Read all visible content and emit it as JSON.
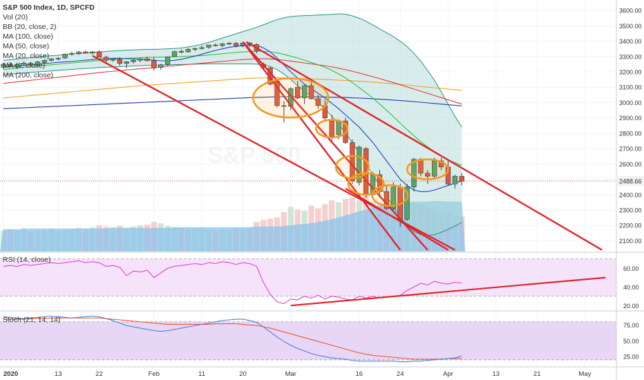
{
  "legend": {
    "title": "S&P 500 Index, 1D, SPCFD",
    "lines": [
      "Vol (20)",
      "BB (20, close, 2)",
      "MA (100, close)",
      "MA (50, close)",
      "MA (20, close)",
      "MA (9, close)",
      "MA (200, close)"
    ]
  },
  "watermark": "S&P 500",
  "rsi_label": "RSI (14, close)",
  "stoch_label": "Stoch (21, 14, 14)",
  "colors": {
    "up": "#53a66b",
    "down": "#e0573e",
    "bb_fill": "#a8d6d3",
    "bb_line": "#2a8f86",
    "ma9": "#1f3fbf",
    "ma20": "#2fbf3f",
    "ma50": "#e03a3a",
    "ma100": "#f0a020",
    "ma200": "#2238a0",
    "trend": "#e0262a",
    "circle": "#f39a1f",
    "rsi": "#e040e0",
    "rsi_fill": "#f3dcf7",
    "stoch_k": "#4a7fd1",
    "stoch_d": "#ec5a2d",
    "stoch_fill": "#e4cff5",
    "vol_up": "#cfe6d4",
    "vol_down": "#f6cfcf",
    "vol_ma": "#8cc3ea"
  },
  "chart_data": {
    "type": "candlestick",
    "price_ticks": [
      3600,
      3500,
      3400,
      3300,
      3200,
      3100,
      3000,
      2900,
      2800,
      2700,
      2600,
      2500,
      2400,
      2300,
      2200,
      2100
    ],
    "price_ylim": [
      2030,
      3650
    ],
    "last_price": "2488.66",
    "x_labels": [
      {
        "label": "2020",
        "i": 0
      },
      {
        "label": "13",
        "i": 8
      },
      {
        "label": "22",
        "i": 14
      },
      {
        "label": "Feb",
        "i": 22
      },
      {
        "label": "11",
        "i": 29
      },
      {
        "label": "20",
        "i": 35
      },
      {
        "label": "Mar",
        "i": 42
      },
      {
        "label": "16",
        "i": 52
      },
      {
        "label": "24",
        "i": 58
      },
      {
        "label": "Apr",
        "i": 65
      },
      {
        "label": "13",
        "i": 72
      },
      {
        "label": "21",
        "i": 78
      },
      {
        "label": "May",
        "i": 85
      }
    ],
    "candles": [
      [
        3230,
        3260,
        3215,
        3250
      ],
      [
        3248,
        3262,
        3230,
        3236
      ],
      [
        3232,
        3252,
        3225,
        3248
      ],
      [
        3250,
        3268,
        3240,
        3256
      ],
      [
        3255,
        3265,
        3240,
        3245
      ],
      [
        3245,
        3272,
        3240,
        3265
      ],
      [
        3262,
        3280,
        3255,
        3275
      ],
      [
        3275,
        3290,
        3268,
        3285
      ],
      [
        3285,
        3295,
        3275,
        3288
      ],
      [
        3290,
        3318,
        3285,
        3316
      ],
      [
        3318,
        3332,
        3305,
        3320
      ],
      [
        3318,
        3336,
        3310,
        3330
      ],
      [
        3330,
        3338,
        3318,
        3322
      ],
      [
        3322,
        3336,
        3315,
        3330
      ],
      [
        3330,
        3340,
        3300,
        3295
      ],
      [
        3295,
        3305,
        3260,
        3276
      ],
      [
        3276,
        3290,
        3265,
        3282
      ],
      [
        3280,
        3295,
        3240,
        3255
      ],
      [
        3255,
        3270,
        3225,
        3266
      ],
      [
        3266,
        3285,
        3255,
        3275
      ],
      [
        3275,
        3290,
        3262,
        3285
      ],
      [
        3285,
        3298,
        3270,
        3272
      ],
      [
        3272,
        3295,
        3210,
        3225
      ],
      [
        3228,
        3252,
        3215,
        3246
      ],
      [
        3248,
        3300,
        3240,
        3298
      ],
      [
        3300,
        3338,
        3298,
        3332
      ],
      [
        3334,
        3345,
        3320,
        3328
      ],
      [
        3330,
        3355,
        3325,
        3347
      ],
      [
        3347,
        3358,
        3335,
        3352
      ],
      [
        3352,
        3372,
        3345,
        3358
      ],
      [
        3360,
        3378,
        3350,
        3375
      ],
      [
        3375,
        3385,
        3365,
        3372
      ],
      [
        3372,
        3390,
        3360,
        3382
      ],
      [
        3382,
        3392,
        3374,
        3386
      ],
      [
        3386,
        3394,
        3360,
        3370
      ],
      [
        3372,
        3393,
        3360,
        3388
      ],
      [
        3388,
        3392,
        3362,
        3378
      ],
      [
        3378,
        3385,
        3320,
        3338
      ],
      [
        3250,
        3262,
        3215,
        3226
      ],
      [
        3226,
        3235,
        3110,
        3120
      ],
      [
        3140,
        3150,
        2970,
        2980
      ],
      [
        2980,
        3010,
        2870,
        2975
      ],
      [
        2975,
        3100,
        2950,
        3090
      ],
      [
        3100,
        3140,
        3020,
        3030
      ],
      [
        3030,
        3115,
        2990,
        3110
      ],
      [
        3110,
        3130,
        3020,
        3025
      ],
      [
        3025,
        3050,
        2960,
        2980
      ],
      [
        2980,
        3020,
        2885,
        2900
      ],
      [
        2880,
        2920,
        2740,
        2780
      ],
      [
        2790,
        2890,
        2760,
        2880
      ],
      [
        2880,
        2900,
        2730,
        2740
      ],
      [
        2740,
        2760,
        2470,
        2490
      ],
      [
        2480,
        2720,
        2460,
        2710
      ],
      [
        2700,
        2710,
        2380,
        2400
      ],
      [
        2400,
        2550,
        2380,
        2530
      ],
      [
        2530,
        2560,
        2380,
        2420
      ],
      [
        2420,
        2460,
        2300,
        2310
      ],
      [
        2310,
        2480,
        2290,
        2450
      ],
      [
        2450,
        2470,
        2190,
        2240
      ],
      [
        2240,
        2470,
        2230,
        2450
      ],
      [
        2450,
        2640,
        2420,
        2630
      ],
      [
        2630,
        2640,
        2520,
        2540
      ],
      [
        2540,
        2560,
        2470,
        2520
      ],
      [
        2520,
        2640,
        2500,
        2620
      ],
      [
        2620,
        2640,
        2560,
        2580
      ],
      [
        2580,
        2620,
        2460,
        2470
      ],
      [
        2470,
        2530,
        2440,
        2520
      ],
      [
        2520,
        2540,
        2460,
        2488
      ]
    ],
    "volume_ma_percent": [
      34,
      34,
      34,
      34,
      35,
      35,
      35,
      35,
      35,
      35,
      35,
      35,
      35,
      35,
      35,
      35,
      36,
      36,
      36,
      36,
      36,
      36,
      36,
      36,
      36,
      37,
      37,
      37,
      37,
      37,
      37,
      37,
      37,
      37,
      37,
      37,
      37,
      38,
      38,
      38,
      38,
      39,
      40,
      41,
      42,
      43,
      45,
      47,
      49,
      52,
      55,
      58,
      61,
      64,
      67,
      70,
      72,
      73,
      74,
      75,
      75,
      76,
      76,
      77,
      77,
      76,
      76,
      76
    ],
    "volume_percent": [
      32,
      34,
      33,
      36,
      30,
      32,
      33,
      35,
      31,
      33,
      34,
      36,
      35,
      37,
      40,
      38,
      37,
      39,
      36,
      38,
      40,
      41,
      45,
      43,
      39,
      37,
      36,
      34,
      35,
      36,
      33,
      32,
      34,
      33,
      35,
      34,
      36,
      45,
      48,
      50,
      52,
      60,
      68,
      64,
      62,
      70,
      66,
      72,
      78,
      75,
      80,
      82,
      78,
      85,
      76,
      74,
      80,
      70,
      82,
      78,
      76,
      72,
      68,
      62,
      60,
      58,
      55,
      53
    ],
    "bb_upper": [
      3275,
      3280,
      3284,
      3289,
      3293,
      3297,
      3301,
      3305,
      3308,
      3312,
      3316,
      3320,
      3323,
      3327,
      3330,
      3333,
      3336,
      3339,
      3341,
      3343,
      3345,
      3346,
      3347,
      3348,
      3350,
      3352,
      3356,
      3362,
      3370,
      3380,
      3392,
      3406,
      3420,
      3434,
      3448,
      3462,
      3476,
      3490,
      3506,
      3524,
      3540,
      3552,
      3560,
      3564,
      3566,
      3568,
      3570,
      3572,
      3574,
      3578,
      3575,
      3565,
      3550,
      3530,
      3505,
      3480,
      3455,
      3430,
      3400,
      3365,
      3320,
      3270,
      3210,
      3145,
      3070,
      2990,
      2910,
      2840
    ],
    "bb_lower": [
      3180,
      3185,
      3188,
      3192,
      3196,
      3200,
      3203,
      3206,
      3210,
      3213,
      3216,
      3219,
      3222,
      3225,
      3228,
      3230,
      3232,
      3234,
      3236,
      3238,
      3240,
      3242,
      3243,
      3244,
      3245,
      3247,
      3248,
      3249,
      3250,
      3251,
      3252,
      3252,
      3252,
      3252,
      3252,
      3252,
      3252,
      3250,
      3245,
      3235,
      3215,
      3185,
      3150,
      3110,
      3075,
      3040,
      3000,
      2960,
      2910,
      2860,
      2800,
      2740,
      2670,
      2600,
      2530,
      2460,
      2390,
      2320,
      2255,
      2200,
      2160,
      2140,
      2135,
      2140,
      2155,
      2175,
      2195,
      2220
    ],
    "ma9": [
      3230,
      3235,
      3238,
      3242,
      3246,
      3250,
      3254,
      3258,
      3262,
      3265,
      3268,
      3272,
      3276,
      3280,
      3284,
      3286,
      3288,
      3288,
      3286,
      3284,
      3282,
      3280,
      3276,
      3272,
      3272,
      3275,
      3282,
      3292,
      3302,
      3315,
      3328,
      3340,
      3350,
      3360,
      3366,
      3370,
      3373,
      3374,
      3356,
      3330,
      3290,
      3245,
      3200,
      3160,
      3120,
      3090,
      3060,
      3030,
      2995,
      2960,
      2920,
      2880,
      2840,
      2790,
      2740,
      2680,
      2620,
      2560,
      2500,
      2460,
      2430,
      2420,
      2420,
      2430,
      2445,
      2460,
      2475,
      2490
    ],
    "ma20": [
      3215,
      3220,
      3225,
      3230,
      3234,
      3238,
      3242,
      3246,
      3250,
      3254,
      3258,
      3262,
      3266,
      3270,
      3274,
      3278,
      3282,
      3285,
      3288,
      3290,
      3292,
      3294,
      3295,
      3296,
      3297,
      3298,
      3300,
      3302,
      3304,
      3306,
      3310,
      3314,
      3318,
      3322,
      3326,
      3330,
      3332,
      3334,
      3333,
      3330,
      3324,
      3314,
      3302,
      3290,
      3276,
      3262,
      3246,
      3230,
      3210,
      3186,
      3160,
      3130,
      3098,
      3064,
      3028,
      2990,
      2950,
      2908,
      2866,
      2824,
      2784,
      2746,
      2712,
      2680,
      2652,
      2628,
      2608,
      2590
    ],
    "ma50": [
      3125,
      3130,
      3135,
      3140,
      3145,
      3150,
      3155,
      3160,
      3165,
      3170,
      3175,
      3180,
      3185,
      3190,
      3195,
      3200,
      3204,
      3208,
      3212,
      3216,
      3220,
      3224,
      3228,
      3232,
      3236,
      3240,
      3244,
      3248,
      3252,
      3256,
      3260,
      3264,
      3268,
      3272,
      3276,
      3280,
      3283,
      3286,
      3286,
      3284,
      3280,
      3276,
      3270,
      3264,
      3258,
      3252,
      3246,
      3240,
      3232,
      3224,
      3214,
      3204,
      3192,
      3180,
      3168,
      3156,
      3143,
      3130,
      3116,
      3102,
      3088,
      3074,
      3060,
      3046,
      3032,
      3018,
      3004,
      2990
    ],
    "ma100": [
      3030,
      3034,
      3038,
      3042,
      3046,
      3050,
      3054,
      3058,
      3062,
      3066,
      3070,
      3074,
      3078,
      3082,
      3086,
      3090,
      3094,
      3098,
      3102,
      3106,
      3110,
      3113,
      3116,
      3119,
      3122,
      3125,
      3128,
      3131,
      3134,
      3137,
      3140,
      3143,
      3146,
      3149,
      3152,
      3155,
      3158,
      3160,
      3161,
      3162,
      3162,
      3161,
      3160,
      3158,
      3156,
      3154,
      3152,
      3150,
      3148,
      3146,
      3144,
      3142,
      3139,
      3136,
      3133,
      3130,
      3126,
      3122,
      3118,
      3114,
      3110,
      3105,
      3100,
      3096,
      3092,
      3088,
      3084,
      3080
    ],
    "ma200": [
      2960,
      2962,
      2964,
      2966,
      2968,
      2970,
      2972,
      2974,
      2976,
      2978,
      2980,
      2982,
      2984,
      2986,
      2988,
      2990,
      2992,
      2994,
      2996,
      2998,
      3000,
      3002,
      3004,
      3006,
      3008,
      3010,
      3012,
      3014,
      3016,
      3018,
      3020,
      3022,
      3024,
      3026,
      3028,
      3030,
      3032,
      3034,
      3035,
      3036,
      3037,
      3038,
      3038,
      3038,
      3038,
      3038,
      3037,
      3036,
      3035,
      3034,
      3033,
      3031,
      3029,
      3027,
      3025,
      3022,
      3019,
      3016,
      3013,
      3010,
      3006,
      3002,
      2998,
      2994,
      2990,
      2986,
      2982,
      2978
    ],
    "trendlines": [
      {
        "x1": 35.5,
        "y1": 3395,
        "x2": 87.5,
        "y2": 2040
      },
      {
        "x1": 35,
        "y1": 3395,
        "x2": 58,
        "y2": 2040
      },
      {
        "x1": 35,
        "y1": 3395,
        "x2": 62,
        "y2": 2040
      },
      {
        "x1": 13,
        "y1": 3305,
        "x2": 66,
        "y2": 2040
      },
      {
        "x1": 50,
        "y1": 2440,
        "x2": 65,
        "y2": 2040
      }
    ],
    "circles": [
      {
        "i": 42,
        "p": 3030,
        "rx": 5.5,
        "ry": 255
      },
      {
        "i": 48,
        "p": 2830,
        "rx": 2.3,
        "ry": 115
      },
      {
        "i": 51,
        "p": 2580,
        "rx": 2.4,
        "ry": 145
      },
      {
        "i": 53,
        "p": 2470,
        "rx": 2.6,
        "ry": 140
      },
      {
        "i": 56.5,
        "p": 2395,
        "rx": 2.6,
        "ry": 135
      },
      {
        "i": 62,
        "p": 2565,
        "rx": 3.0,
        "ry": 130
      }
    ],
    "rsi": {
      "ticks": [
        60,
        40,
        20
      ],
      "ylim": [
        15,
        75
      ],
      "band": [
        30,
        70
      ],
      "values": [
        62,
        63,
        62,
        64,
        63,
        64,
        65,
        66,
        65,
        66,
        67,
        68,
        66,
        67,
        66,
        62,
        63,
        61,
        52,
        57,
        56,
        58,
        50,
        55,
        60,
        62,
        63,
        64,
        65,
        64,
        66,
        65,
        67,
        66,
        64,
        66,
        65,
        62,
        45,
        32,
        24,
        22,
        27,
        26,
        30,
        28,
        31,
        27,
        30,
        29,
        27,
        26,
        30,
        28,
        30,
        28,
        29,
        30,
        31,
        36,
        40,
        44,
        42,
        46,
        44,
        43,
        45,
        44
      ],
      "trendline": {
        "x1": 42,
        "y1": 20,
        "x2": 88,
        "y2": 50
      }
    },
    "stoch": {
      "ticks": [
        75,
        50,
        25
      ],
      "ylim": [
        10,
        95
      ],
      "band": [
        20,
        80
      ],
      "k": [
        88,
        87,
        86,
        85,
        86,
        87,
        88,
        89,
        88,
        87,
        86,
        87,
        88,
        89,
        88,
        85,
        82,
        78,
        74,
        72,
        70,
        68,
        66,
        65,
        66,
        68,
        70,
        72,
        74,
        76,
        78,
        80,
        82,
        83,
        84,
        84,
        82,
        79,
        72,
        64,
        56,
        49,
        43,
        38,
        34,
        30,
        27,
        25,
        23,
        22,
        21,
        19,
        18,
        18,
        18,
        18,
        18,
        18,
        17,
        17,
        18,
        18,
        19,
        20,
        21,
        22,
        23,
        26
      ],
      "d": [
        84,
        84,
        84,
        84,
        85,
        85,
        85,
        86,
        86,
        86,
        86,
        86,
        86,
        86,
        86,
        85,
        84,
        83,
        82,
        81,
        80,
        79,
        78,
        77,
        76,
        76,
        76,
        76,
        76,
        76,
        76,
        77,
        77,
        77,
        77,
        76,
        75,
        74,
        72,
        70,
        67,
        64,
        61,
        58,
        55,
        52,
        49,
        46,
        43,
        40,
        37,
        34,
        31,
        29,
        27,
        26,
        25,
        24,
        23,
        22,
        21,
        21,
        21,
        21,
        21,
        22,
        22,
        22
      ]
    }
  }
}
